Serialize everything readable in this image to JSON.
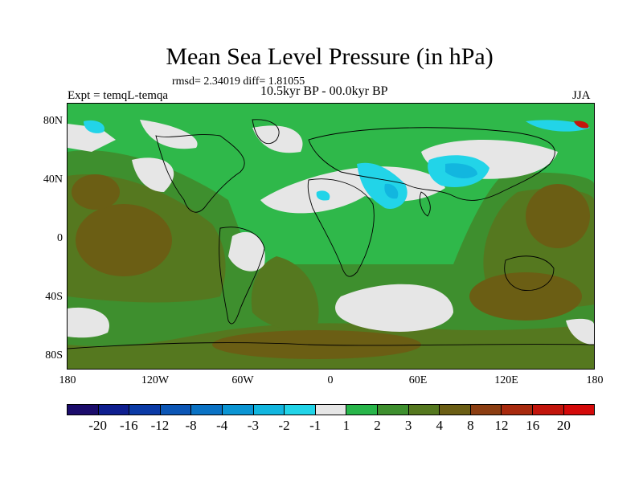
{
  "title": "Mean Sea Level Pressure (in hPa)",
  "stats": "rmsd= 2.34019 diff= 1.81055",
  "experiment": "Expt = temqL-temqa",
  "period": "10.5kyr BP - 00.0kyr BP",
  "season": "JJA",
  "lat_labels": [
    "80N",
    "40N",
    "0",
    "40S",
    "80S"
  ],
  "lon_labels": [
    "180",
    "120W",
    "60W",
    "0",
    "60E",
    "120E",
    "180"
  ],
  "colorbar": {
    "labels": [
      "-20",
      "-16",
      "-12",
      "-8",
      "-4",
      "-3",
      "-2",
      "-1",
      "1",
      "2",
      "3",
      "4",
      "8",
      "12",
      "16",
      "20"
    ],
    "colors": [
      "#1b0c6b",
      "#0e1e8f",
      "#0b3aa6",
      "#0c56b5",
      "#0a72c4",
      "#0b95d3",
      "#12b6df",
      "#22d4e8",
      "#e6e6e6",
      "#28b54a",
      "#3e8f2e",
      "#55781f",
      "#6b5e14",
      "#8c3e12",
      "#a82a0e",
      "#c2150c",
      "#d40a0a"
    ]
  },
  "map_colors": {
    "background": "#2fb84a",
    "white": "#e6e6e6",
    "green_dark": "#3e8f2e",
    "olive": "#55781f",
    "brown": "#6b5e14",
    "cyan": "#22d4e8",
    "blue": "#12b6df",
    "red": "#c2150c"
  }
}
